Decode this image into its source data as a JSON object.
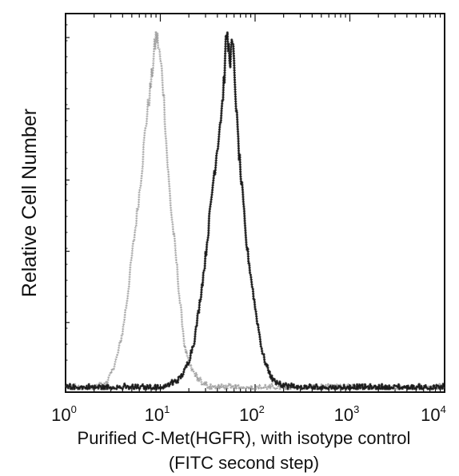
{
  "chart_data": {
    "type": "area",
    "title": "",
    "xlabel_lines": [
      "Purified C-Met(HGFR), with isotype control",
      "(FITC second step)"
    ],
    "ylabel": "Relative Cell Number",
    "x_scale": "log",
    "xlim": [
      1,
      10000
    ],
    "ylim": [
      0,
      1
    ],
    "x_ticks": [
      {
        "value": 1,
        "base": "10",
        "exp": "0"
      },
      {
        "value": 10,
        "base": "10",
        "exp": "1"
      },
      {
        "value": 100,
        "base": "10",
        "exp": "2"
      },
      {
        "value": 1000,
        "base": "10",
        "exp": "3"
      },
      {
        "value": 10000,
        "base": "10",
        "exp": "4"
      }
    ],
    "grid": false,
    "legend": "none",
    "series": [
      {
        "style": "light-gray-noisy",
        "x": [
          1,
          2,
          2.6,
          3,
          3.5,
          4,
          4.5,
          5,
          5.5,
          6,
          6.5,
          7,
          7.5,
          8,
          8.5,
          9,
          9.5,
          10,
          10.5,
          11,
          11.5,
          12,
          13,
          14,
          15,
          16,
          17,
          18,
          20,
          22,
          25,
          28,
          32,
          40,
          100,
          10000
        ],
        "y": [
          0,
          0,
          0.01,
          0.04,
          0.09,
          0.16,
          0.26,
          0.37,
          0.46,
          0.55,
          0.64,
          0.74,
          0.8,
          0.86,
          0.93,
          0.99,
          0.97,
          0.92,
          0.88,
          0.8,
          0.7,
          0.62,
          0.5,
          0.42,
          0.34,
          0.25,
          0.19,
          0.12,
          0.07,
          0.05,
          0.03,
          0.01,
          0.005,
          0,
          0,
          0
        ]
      },
      {
        "style": "dark-noisy",
        "x": [
          1,
          10,
          13,
          16,
          18,
          20,
          23,
          26,
          30,
          33,
          36,
          40,
          45,
          48,
          50,
          52,
          55,
          58,
          60,
          62,
          65,
          70,
          75,
          80,
          90,
          100,
          110,
          120,
          130,
          140,
          150,
          170,
          200,
          300,
          10000
        ],
        "y": [
          0,
          0,
          0.01,
          0.03,
          0.05,
          0.08,
          0.14,
          0.24,
          0.37,
          0.48,
          0.58,
          0.68,
          0.8,
          0.9,
          1.0,
          0.96,
          0.93,
          0.97,
          0.9,
          0.84,
          0.73,
          0.61,
          0.52,
          0.42,
          0.32,
          0.23,
          0.16,
          0.1,
          0.07,
          0.05,
          0.03,
          0.015,
          0.005,
          0,
          0
        ]
      }
    ]
  }
}
